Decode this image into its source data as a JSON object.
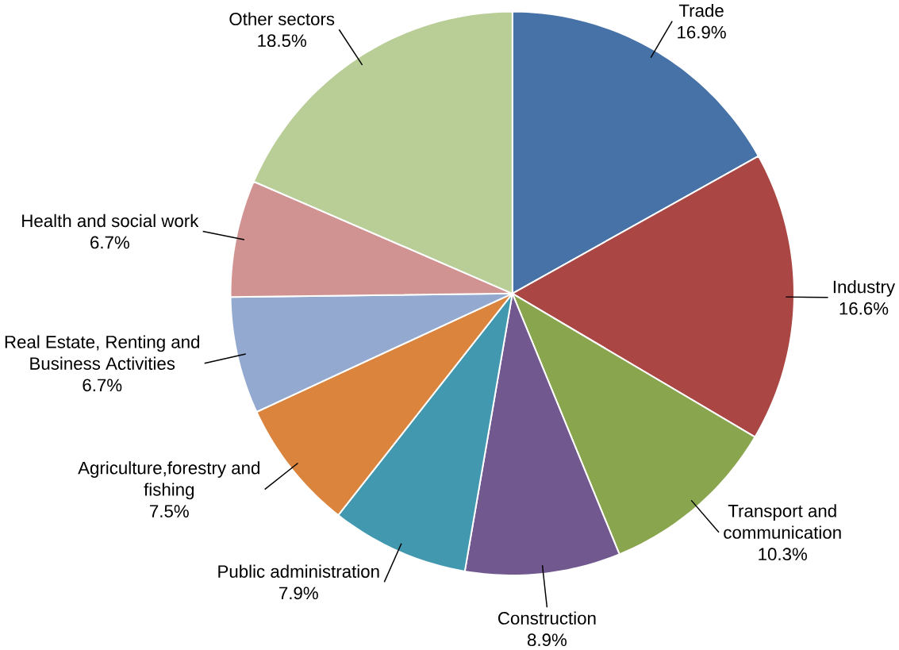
{
  "chart_data": {
    "type": "pie",
    "categories": [
      "Trade",
      "Industry",
      "Transport and communication",
      "Construction",
      "Public administration",
      "Agriculture,forestry and fishing",
      "Real Estate, Renting and Business Activities",
      "Health and social work",
      "Other sectors"
    ],
    "values": [
      16.9,
      16.6,
      10.3,
      8.9,
      7.9,
      7.5,
      6.7,
      6.7,
      18.5
    ],
    "value_labels": [
      "16.9%",
      "16.6%",
      "10.3%",
      "8.9%",
      "7.9%",
      "7.5%",
      "6.7%",
      "6.7%",
      "18.5%"
    ],
    "colors": [
      "#4672a8",
      "#aa4644",
      "#89a54e",
      "#71588f",
      "#4198af",
      "#db843d",
      "#93a9cf",
      "#d19392",
      "#b9cd96"
    ]
  }
}
